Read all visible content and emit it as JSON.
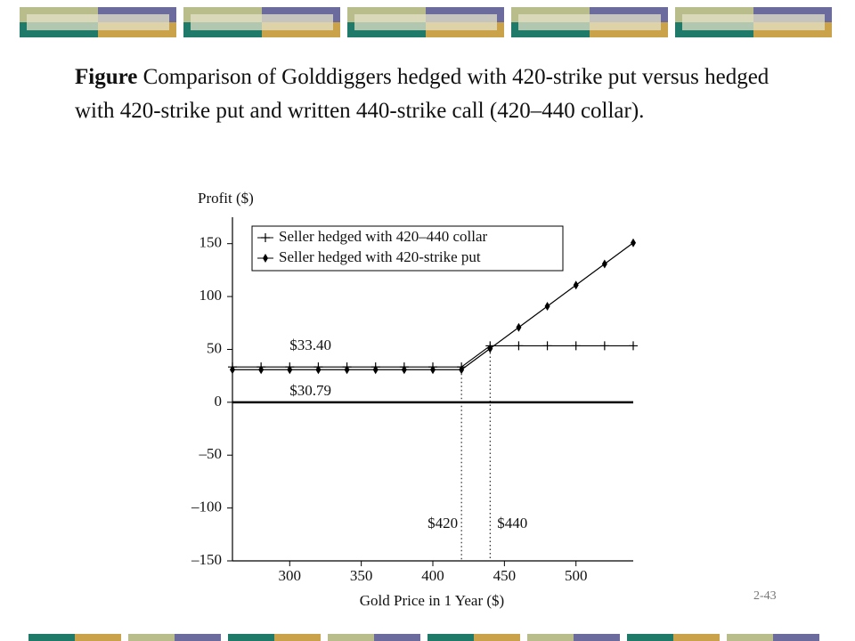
{
  "heading": {
    "label": "Figure",
    "text": "Comparison of Golddiggers hedged with 420-strike put versus hedged with 420-strike put and written 440-strike call (420–440 collar)."
  },
  "page_number": "2-43",
  "chart_data": {
    "type": "line",
    "x_label": "Gold Price in 1 Year ($)",
    "y_label": "Profit ($)",
    "x": [
      260,
      280,
      300,
      320,
      340,
      360,
      380,
      400,
      420,
      440,
      460,
      480,
      500,
      520,
      540
    ],
    "series": [
      {
        "name": "Seller hedged with 420–440 collar",
        "color": "#000000",
        "marker": "plus",
        "values": [
          33.4,
          33.4,
          33.4,
          33.4,
          33.4,
          33.4,
          33.4,
          33.4,
          33.4,
          53.4,
          53.4,
          53.4,
          53.4,
          53.4,
          53.4
        ]
      },
      {
        "name": "Seller hedged with 420-strike put",
        "color": "#000000",
        "marker": "diamond",
        "values": [
          30.79,
          30.79,
          30.79,
          30.79,
          30.79,
          30.79,
          30.79,
          30.79,
          30.79,
          50.79,
          70.79,
          90.79,
          110.79,
          130.79,
          150.79
        ]
      }
    ],
    "xlim": [
      260,
      540
    ],
    "ylim": [
      -150,
      175
    ],
    "xticks": [
      300,
      350,
      400,
      450,
      500
    ],
    "yticks": [
      {
        "value": -150,
        "label": "–150"
      },
      {
        "value": -100,
        "label": "–100"
      },
      {
        "value": -50,
        "label": "–50"
      },
      0,
      50,
      100,
      150
    ],
    "reference_lines": [
      {
        "value": 420,
        "label": "$420"
      },
      {
        "value": 440,
        "label": "$440"
      }
    ],
    "annotations": [
      {
        "value": 33.4,
        "label": "$33.40"
      },
      {
        "value": 30.79,
        "label": "$30.79"
      }
    ],
    "zero_line": true,
    "legend": "upper left"
  }
}
